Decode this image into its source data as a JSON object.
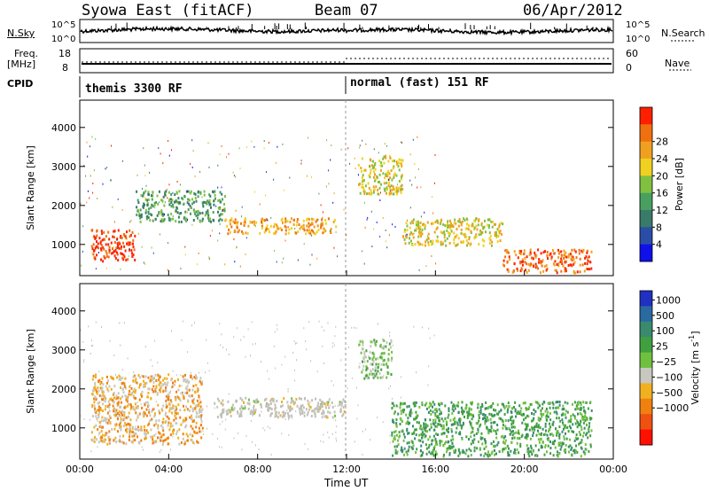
{
  "header": {
    "station": "Syowa East (fitACF)",
    "beam": "Beam 07",
    "date": "06/Apr/2012"
  },
  "strip_panels": {
    "nsky_label": "N.Sky",
    "nsky_ticks": [
      "10^5",
      "10^0"
    ],
    "nsearch_ticks": [
      "10^5",
      "10^0"
    ],
    "nsearch_label": "N.Search",
    "freq_label": "Freq.",
    "freq_unit": "[MHz]",
    "freq_ticks": [
      "18",
      "8"
    ],
    "nave_ticks": [
      "60",
      "0"
    ],
    "nave_label": "Nave",
    "cpid_label": "CPID",
    "cpid_modes": [
      {
        "name": "themis 3300 RF",
        "start": "00:00"
      },
      {
        "name": "normal (fast) 151 RF",
        "start": "12:00"
      }
    ]
  },
  "colors": {
    "power_scale": [
      "#1010e8",
      "#2a4ea8",
      "#3a7a6a",
      "#48a060",
      "#80c040",
      "#f0d020",
      "#f0a020",
      "#f07010",
      "#ff2000"
    ],
    "velocity_scale": [
      "#2030c0",
      "#2a6aa0",
      "#3a8a70",
      "#40a040",
      "#70c040",
      "#c8c8c0",
      "#f0b020",
      "#f08010",
      "#f05010",
      "#ff1000"
    ],
    "ground_scatter": "#c0c0b8"
  },
  "chart_data": [
    {
      "type": "heatmap",
      "name": "power",
      "ylabel": "Slant Range [km]",
      "yticks": [
        "1000",
        "2000",
        "3000",
        "4000"
      ],
      "ylim": [
        200,
        4700
      ],
      "colorbar_label": "Power [dB]",
      "colorbar_ticks": [
        "4",
        "8",
        "12",
        "16",
        "20",
        "24",
        "28"
      ],
      "colorbar_range": [
        0,
        32
      ],
      "echo_regions": [
        {
          "t_start": 0.5,
          "t_end": 2.5,
          "r_low": 600,
          "r_high": 1400,
          "power_db": 30
        },
        {
          "t_start": 2.5,
          "t_end": 6.5,
          "r_low": 1600,
          "r_high": 2400,
          "power_db": 14
        },
        {
          "t_start": 6.5,
          "t_end": 11.5,
          "r_low": 1300,
          "r_high": 1700,
          "power_db": 22
        },
        {
          "t_start": 12.5,
          "t_end": 14.5,
          "r_low": 2300,
          "r_high": 3300,
          "power_db": 18
        },
        {
          "t_start": 14.5,
          "t_end": 19.0,
          "r_low": 1000,
          "r_high": 1700,
          "power_db": 20
        },
        {
          "t_start": 19.0,
          "t_end": 23.0,
          "r_low": 300,
          "r_high": 900,
          "power_db": 28
        }
      ]
    },
    {
      "type": "heatmap",
      "name": "velocity",
      "ylabel": "Slant Range [km]",
      "yticks": [
        "1000",
        "2000",
        "3000",
        "4000"
      ],
      "ylim": [
        200,
        4700
      ],
      "colorbar_label": "Velocity [m s^-1]",
      "colorbar_ticks": [
        "1000",
        "500",
        "100",
        "25",
        "−25",
        "−100",
        "−500",
        "−1000"
      ],
      "echo_regions": [
        {
          "t_start": 0.5,
          "t_end": 5.5,
          "r_low": 600,
          "r_high": 2400,
          "velocity": -300
        },
        {
          "t_start": 6.0,
          "t_end": 12.0,
          "r_low": 1300,
          "r_high": 1800,
          "velocity": 0
        },
        {
          "t_start": 12.5,
          "t_end": 14.0,
          "r_low": 2300,
          "r_high": 3300,
          "velocity": 200
        },
        {
          "t_start": 14.0,
          "t_end": 23.0,
          "r_low": 300,
          "r_high": 1700,
          "velocity": 300
        }
      ]
    }
  ],
  "time_axis": {
    "label": "Time UT",
    "ticks": [
      "00:00",
      "04:00",
      "08:00",
      "12:00",
      "16:00",
      "20:00",
      "00:00"
    ]
  }
}
